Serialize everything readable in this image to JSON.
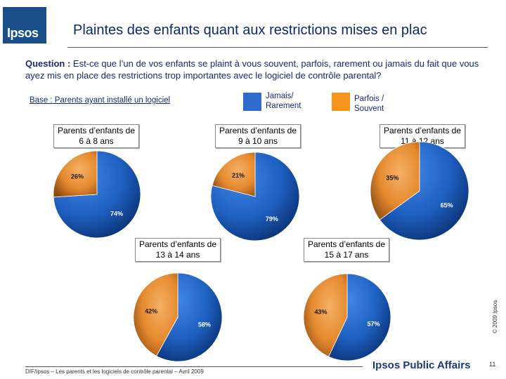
{
  "header": {
    "logo_text": "Ipsos",
    "title": "Plaintes des enfants quant aux restrictions mises en plac"
  },
  "question": {
    "label": "Question :",
    "text": " Est-ce que l’un de vos enfants se plaint à vous souvent, parfois, rarement ou jamais du fait que vous ayez mis en place des restrictions trop importantes avec le logiciel de contrôle parental?"
  },
  "base": "Base : Parents ayant installé un logiciel",
  "legend": [
    {
      "label_line1": "Jamais/",
      "label_line2": "Rarement",
      "color": "#2f6bcc"
    },
    {
      "label_line1": "Parfois /",
      "label_line2": "Souvent",
      "color": "#f7941d"
    }
  ],
  "colors": {
    "blue": "#1e5fc0",
    "orange": "#e58a2e"
  },
  "chart_data": {
    "type": "pie",
    "series_names": [
      "Jamais/ Rarement",
      "Parfois / Souvent"
    ],
    "pies": [
      {
        "title_line1": "Parents d’enfants de",
        "title_line2": "6 à 8 ans",
        "values": [
          74,
          26
        ],
        "labels": [
          "74%",
          "26%"
        ]
      },
      {
        "title_line1": "Parents d’enfants de",
        "title_line2": "9 à 10 ans",
        "values": [
          79,
          21
        ],
        "labels": [
          "79%",
          "21%"
        ]
      },
      {
        "title_line1": "Parents d’enfants de",
        "title_line2": "11 à 12 ans",
        "values": [
          65,
          35
        ],
        "labels": [
          "65%",
          "35%"
        ]
      },
      {
        "title_line1": "Parents d’enfants de",
        "title_line2": "13 à 14 ans",
        "values": [
          58,
          42
        ],
        "labels": [
          "58%",
          "42%"
        ]
      },
      {
        "title_line1": "Parents d’enfants de",
        "title_line2": "15 à 17 ans",
        "values": [
          57,
          43
        ],
        "labels": [
          "57%",
          "43%"
        ]
      }
    ]
  },
  "copyright": "© 2009 Ipsos",
  "footer": {
    "source": "DIF/Ipsos – Les parents et les logiciels de contrôle parental – Avril 2009",
    "brand": "Ipsos Public Affairs",
    "page": "11"
  }
}
